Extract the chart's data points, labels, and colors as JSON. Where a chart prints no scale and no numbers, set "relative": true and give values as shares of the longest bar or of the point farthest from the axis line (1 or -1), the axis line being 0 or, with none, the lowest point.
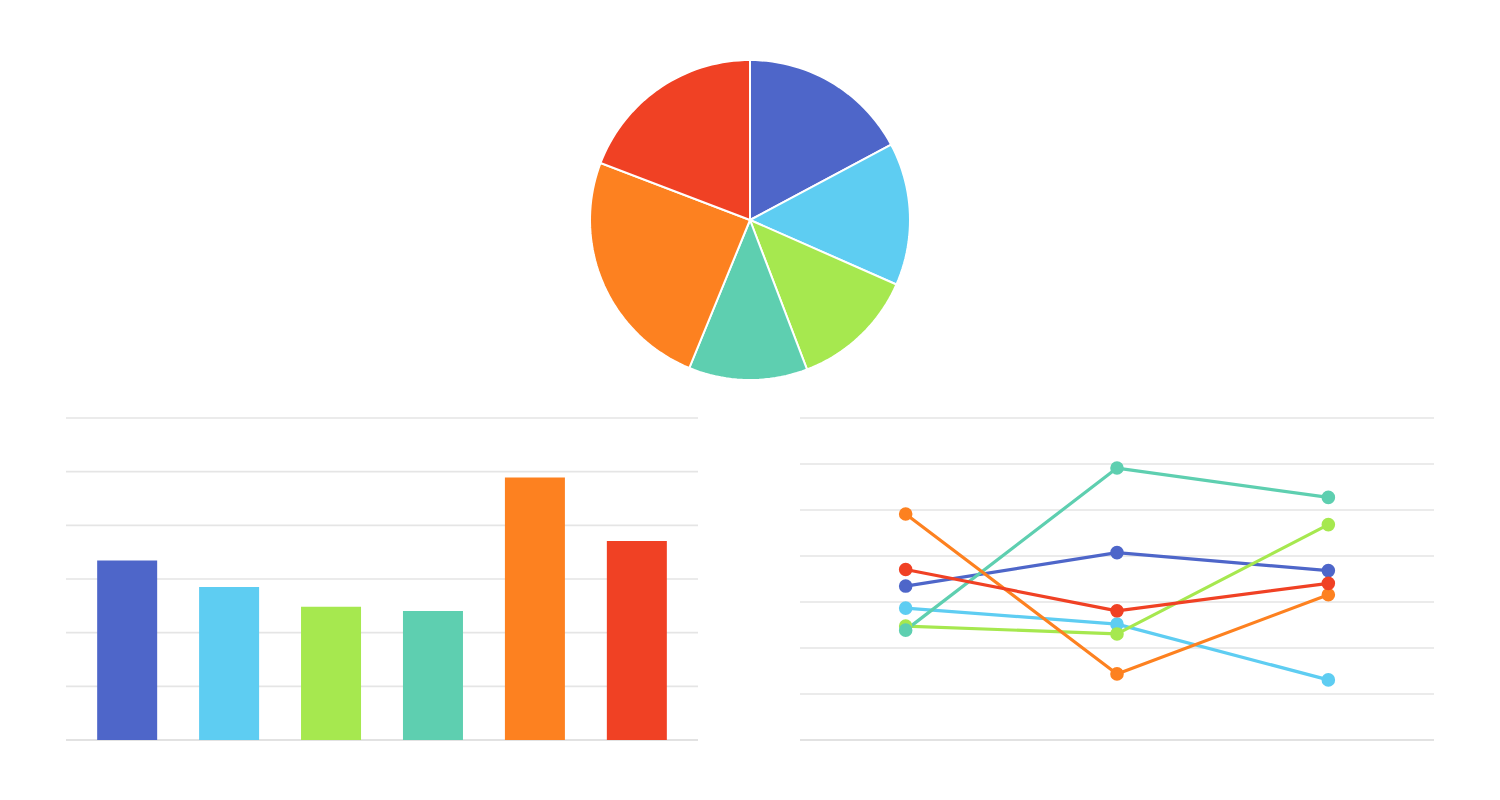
{
  "chart_data": [
    {
      "type": "pie",
      "categories": [
        null,
        null,
        null,
        null,
        null,
        null
      ],
      "values": [
        17.2,
        14.4,
        12.6,
        12.0,
        24.6,
        19.2
      ],
      "colors": [
        "#4e66c9",
        "#5ecdf2",
        "#a6e84f",
        "#5ecfb0",
        "#fd8120",
        "#f04124"
      ]
    },
    {
      "type": "bar",
      "relative": true,
      "grid": "y",
      "categories": [
        null,
        null,
        null,
        null,
        null,
        null
      ],
      "values": [
        0.684,
        0.583,
        0.508,
        0.492,
        1,
        0.758
      ],
      "colors": [
        "#4e66c9",
        "#5ecdf2",
        "#a6e84f",
        "#5ecfb0",
        "#fd8120",
        "#f04124"
      ]
    },
    {
      "type": "line",
      "relative": true,
      "grid": "y",
      "marker": "circle",
      "categories": [
        null,
        null,
        null
      ],
      "series": [
        {
          "color": "#4e66c9",
          "values": [
            0.566,
            0.689,
            0.623
          ]
        },
        {
          "color": "#5ecdf2",
          "values": [
            0.485,
            0.426,
            0.221
          ]
        },
        {
          "color": "#a6e84f",
          "values": [
            0.419,
            0.39,
            0.792
          ]
        },
        {
          "color": "#5ecfb0",
          "values": [
            0.404,
            1,
            0.892
          ]
        },
        {
          "color": "#fd8120",
          "values": [
            0.831,
            0.243,
            0.534
          ]
        },
        {
          "color": "#f04124",
          "values": [
            0.627,
            0.475,
            0.576
          ]
        }
      ]
    }
  ]
}
